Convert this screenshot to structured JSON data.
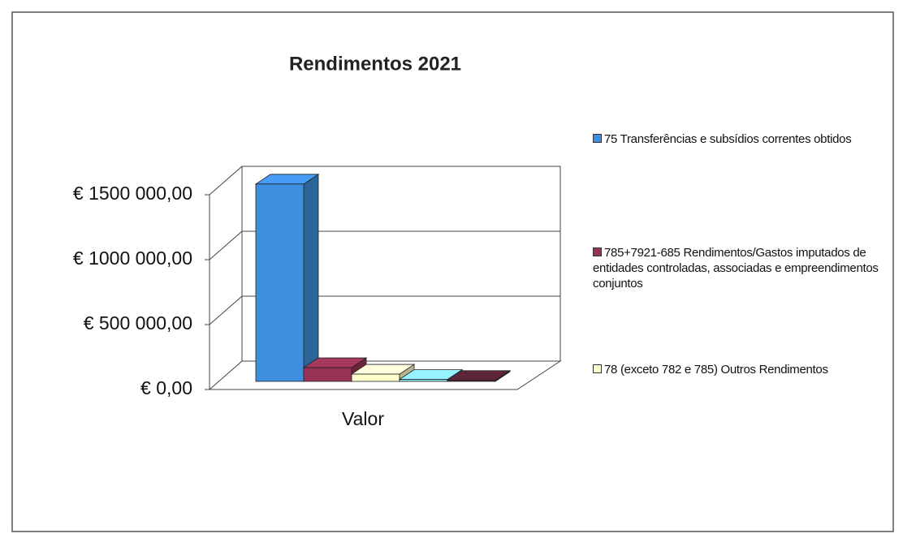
{
  "chart_data": {
    "type": "bar3d",
    "title": "Rendimentos 2021",
    "categories": [
      "Valor"
    ],
    "series": [
      {
        "name": "75 Transferências e subsídios correntes obtidos",
        "color": "#3f8fdf",
        "values": [
          1520000
        ]
      },
      {
        "name": "785+7921-685   Rendimentos/Gastos imputados de entidades controladas, associadas e empreendimentos conjuntos",
        "color": "#993355",
        "values": [
          106000
        ]
      },
      {
        "name": "78 (exceto 782 e 785) Outros Rendimentos",
        "color": "#ffffcc",
        "values": [
          56000
        ]
      },
      {
        "color": "#88ddee",
        "values": [
          15000
        ]
      },
      {
        "color": "#552233",
        "values": [
          8000
        ]
      }
    ],
    "ylim": [
      0,
      1500000
    ],
    "yticks": [
      {
        "value": 0,
        "label": "€  0,00"
      },
      {
        "value": 500000,
        "label": "€ 500 000,00"
      },
      {
        "value": 1000000,
        "label": "€ 1000 000,00"
      },
      {
        "value": 1500000,
        "label": "€ 1500 000,00"
      }
    ],
    "grid": true
  }
}
